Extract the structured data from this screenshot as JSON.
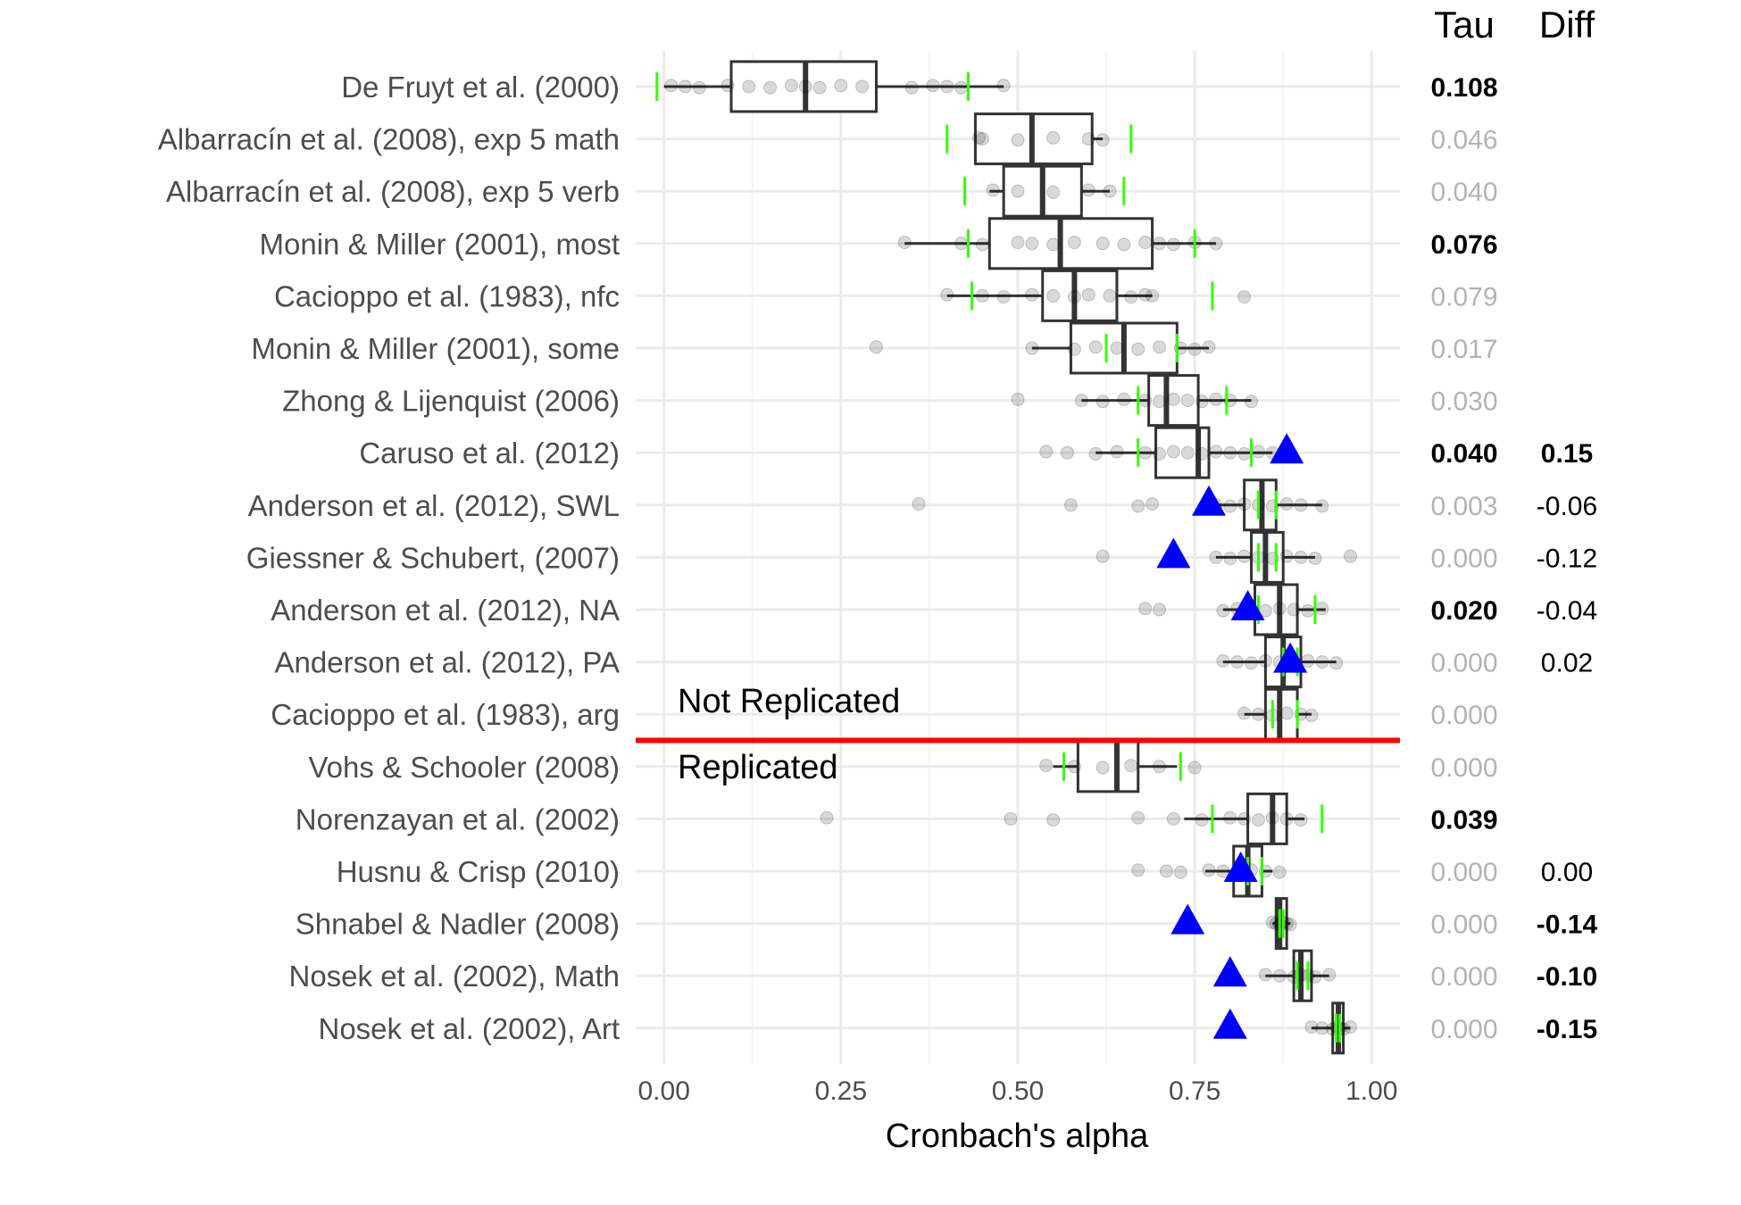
{
  "chart_data": {
    "type": "boxplot",
    "xlabel": "Cronbach's alpha",
    "xlim": [
      -0.04,
      1.04
    ],
    "x_ticks": [
      {
        "value": 0.0,
        "label": "0.00"
      },
      {
        "value": 0.25,
        "label": "0.25"
      },
      {
        "value": 0.5,
        "label": "0.50"
      },
      {
        "value": 0.75,
        "label": "0.75"
      },
      {
        "value": 1.0,
        "label": "1.00"
      }
    ],
    "column_headers": {
      "tau": "Tau",
      "diff": "Diff"
    },
    "group_labels": {
      "upper": "Not Replicated",
      "lower": "Replicated"
    },
    "divider_after_index": 12,
    "studies": [
      {
        "name": "De Fruyt et al. (2000)",
        "q1": 0.095,
        "median": 0.2,
        "q3": 0.3,
        "wlo": 0.0,
        "whi": 0.48,
        "ci": [
          -0.01,
          0.43
        ],
        "orig": null,
        "tau": "0.108",
        "tau_sig": true,
        "diff": "",
        "diff_bold": false,
        "points": [
          0.01,
          0.03,
          0.05,
          0.09,
          0.12,
          0.15,
          0.18,
          0.2,
          0.22,
          0.25,
          0.28,
          0.35,
          0.38,
          0.4,
          0.42,
          0.48
        ]
      },
      {
        "name": "Albarracín et al. (2008), exp 5 math",
        "q1": 0.44,
        "median": 0.52,
        "q3": 0.605,
        "wlo": 0.44,
        "whi": 0.62,
        "ci": [
          0.4,
          0.66
        ],
        "orig": null,
        "tau": "0.046",
        "tau_sig": false,
        "diff": "",
        "diff_bold": false,
        "points": [
          0.445,
          0.45,
          0.5,
          0.55,
          0.6,
          0.62
        ]
      },
      {
        "name": "Albarracín et al. (2008), exp 5 verb",
        "q1": 0.48,
        "median": 0.535,
        "q3": 0.59,
        "wlo": 0.46,
        "whi": 0.63,
        "ci": [
          0.425,
          0.65
        ],
        "orig": null,
        "tau": "0.040",
        "tau_sig": false,
        "diff": "",
        "diff_bold": false,
        "points": [
          0.465,
          0.5,
          0.55,
          0.6,
          0.63
        ]
      },
      {
        "name": "Monin & Miller (2001), most",
        "q1": 0.46,
        "median": 0.56,
        "q3": 0.69,
        "wlo": 0.34,
        "whi": 0.78,
        "ci": [
          0.43,
          0.75
        ],
        "orig": null,
        "tau": "0.076",
        "tau_sig": true,
        "diff": "",
        "diff_bold": false,
        "points": [
          0.34,
          0.42,
          0.45,
          0.5,
          0.52,
          0.55,
          0.58,
          0.62,
          0.65,
          0.68,
          0.7,
          0.72,
          0.75,
          0.78
        ]
      },
      {
        "name": "Cacioppo et al. (1983), nfc",
        "q1": 0.535,
        "median": 0.58,
        "q3": 0.64,
        "wlo": 0.4,
        "whi": 0.69,
        "ci": [
          0.435,
          0.775
        ],
        "orig": null,
        "tau": "0.079",
        "tau_sig": false,
        "diff": "",
        "diff_bold": false,
        "points": [
          0.4,
          0.45,
          0.48,
          0.52,
          0.55,
          0.58,
          0.6,
          0.63,
          0.66,
          0.68,
          0.69,
          0.82
        ]
      },
      {
        "name": "Monin & Miller (2001), some",
        "q1": 0.575,
        "median": 0.65,
        "q3": 0.725,
        "wlo": 0.52,
        "whi": 0.77,
        "ci": [
          0.625,
          0.725
        ],
        "orig": null,
        "tau": "0.017",
        "tau_sig": false,
        "diff": "",
        "diff_bold": false,
        "points": [
          0.3,
          0.52,
          0.58,
          0.61,
          0.64,
          0.67,
          0.7,
          0.73,
          0.75,
          0.77
        ]
      },
      {
        "name": "Zhong & Lijenquist (2006)",
        "q1": 0.685,
        "median": 0.71,
        "q3": 0.755,
        "wlo": 0.59,
        "whi": 0.83,
        "ci": [
          0.67,
          0.795
        ],
        "orig": null,
        "tau": "0.030",
        "tau_sig": false,
        "diff": "",
        "diff_bold": false,
        "points": [
          0.5,
          0.59,
          0.62,
          0.65,
          0.68,
          0.7,
          0.72,
          0.74,
          0.76,
          0.78,
          0.8,
          0.83
        ]
      },
      {
        "name": "Caruso et al. (2012)",
        "q1": 0.695,
        "median": 0.755,
        "q3": 0.77,
        "wlo": 0.61,
        "whi": 0.86,
        "ci": [
          0.67,
          0.83
        ],
        "orig": 0.88,
        "tau": "0.040",
        "tau_sig": true,
        "diff": "0.15",
        "diff_bold": true,
        "points": [
          0.54,
          0.57,
          0.61,
          0.64,
          0.68,
          0.7,
          0.72,
          0.74,
          0.76,
          0.78,
          0.8,
          0.82,
          0.84,
          0.86
        ]
      },
      {
        "name": "Anderson et al. (2012), SWL",
        "q1": 0.82,
        "median": 0.845,
        "q3": 0.865,
        "wlo": 0.77,
        "whi": 0.93,
        "ci": [
          0.84,
          0.865
        ],
        "orig": 0.77,
        "tau": "0.003",
        "tau_sig": false,
        "diff": "-0.06",
        "diff_bold": false,
        "points": [
          0.36,
          0.575,
          0.67,
          0.69,
          0.78,
          0.8,
          0.82,
          0.84,
          0.86,
          0.88,
          0.9,
          0.93
        ]
      },
      {
        "name": "Giessner & Schubert, (2007)",
        "q1": 0.83,
        "median": 0.85,
        "q3": 0.875,
        "wlo": 0.78,
        "whi": 0.92,
        "ci": [
          0.84,
          0.865
        ],
        "orig": 0.72,
        "tau": "0.000",
        "tau_sig": false,
        "diff": "-0.12",
        "diff_bold": false,
        "points": [
          0.62,
          0.78,
          0.8,
          0.82,
          0.84,
          0.86,
          0.88,
          0.9,
          0.92,
          0.97
        ]
      },
      {
        "name": "Anderson et al. (2012), NA",
        "q1": 0.835,
        "median": 0.87,
        "q3": 0.895,
        "wlo": 0.79,
        "whi": 0.935,
        "ci": [
          0.84,
          0.92
        ],
        "orig": 0.825,
        "tau": "0.020",
        "tau_sig": true,
        "diff": "-0.04",
        "diff_bold": false,
        "points": [
          0.68,
          0.7,
          0.79,
          0.81,
          0.83,
          0.85,
          0.87,
          0.89,
          0.91,
          0.93
        ]
      },
      {
        "name": "Anderson et al. (2012), PA",
        "q1": 0.85,
        "median": 0.875,
        "q3": 0.9,
        "wlo": 0.79,
        "whi": 0.95,
        "ci": [
          0.875,
          0.895
        ],
        "orig": 0.885,
        "tau": "0.000",
        "tau_sig": false,
        "diff": "0.02",
        "diff_bold": false,
        "points": [
          0.79,
          0.81,
          0.83,
          0.85,
          0.87,
          0.89,
          0.91,
          0.93,
          0.95
        ]
      },
      {
        "name": "Cacioppo et al. (1983), arg",
        "q1": 0.85,
        "median": 0.87,
        "q3": 0.895,
        "wlo": 0.82,
        "whi": 0.915,
        "ci": [
          0.86,
          0.895
        ],
        "orig": null,
        "tau": "0.000",
        "tau_sig": false,
        "diff": "",
        "diff_bold": false,
        "points": [
          0.82,
          0.84,
          0.86,
          0.88,
          0.9,
          0.915
        ]
      },
      {
        "name": "Vohs & Schooler (2008)",
        "q1": 0.585,
        "median": 0.64,
        "q3": 0.67,
        "wlo": 0.55,
        "whi": 0.725,
        "ci": [
          0.565,
          0.73
        ],
        "orig": null,
        "tau": "0.000",
        "tau_sig": false,
        "diff": "",
        "diff_bold": false,
        "points": [
          0.54,
          0.58,
          0.62,
          0.66,
          0.7,
          0.75
        ]
      },
      {
        "name": "Norenzayan et al. (2002)",
        "q1": 0.825,
        "median": 0.86,
        "q3": 0.88,
        "wlo": 0.735,
        "whi": 0.905,
        "ci": [
          0.775,
          0.93
        ],
        "orig": null,
        "tau": "0.039",
        "tau_sig": true,
        "diff": "",
        "diff_bold": false,
        "points": [
          0.23,
          0.49,
          0.55,
          0.67,
          0.72,
          0.76,
          0.8,
          0.82,
          0.84,
          0.86,
          0.88,
          0.9
        ]
      },
      {
        "name": "Husnu & Crisp (2010)",
        "q1": 0.805,
        "median": 0.825,
        "q3": 0.845,
        "wlo": 0.765,
        "whi": 0.86,
        "ci": [
          0.825,
          0.845
        ],
        "orig": 0.815,
        "tau": "0.000",
        "tau_sig": false,
        "diff": "0.00",
        "diff_bold": false,
        "points": [
          0.67,
          0.71,
          0.73,
          0.77,
          0.79,
          0.81,
          0.83,
          0.85,
          0.87
        ]
      },
      {
        "name": "Shnabel & Nadler (2008)",
        "q1": 0.865,
        "median": 0.87,
        "q3": 0.88,
        "wlo": 0.86,
        "whi": 0.885,
        "ci": [
          0.87,
          0.875
        ],
        "orig": 0.74,
        "tau": "0.000",
        "tau_sig": false,
        "diff": "-0.14",
        "diff_bold": true,
        "points": [
          0.86,
          0.865,
          0.87,
          0.875,
          0.88,
          0.885
        ]
      },
      {
        "name": "Nosek et al. (2002), Math",
        "q1": 0.89,
        "median": 0.9,
        "q3": 0.915,
        "wlo": 0.85,
        "whi": 0.94,
        "ci": [
          0.895,
          0.91
        ],
        "orig": 0.8,
        "tau": "0.000",
        "tau_sig": false,
        "diff": "-0.10",
        "diff_bold": true,
        "points": [
          0.85,
          0.87,
          0.89,
          0.9,
          0.91,
          0.92,
          0.94
        ]
      },
      {
        "name": "Nosek et al. (2002), Art",
        "q1": 0.945,
        "median": 0.953,
        "q3": 0.96,
        "wlo": 0.915,
        "whi": 0.97,
        "ci": [
          0.95,
          0.955
        ],
        "orig": 0.8,
        "tau": "0.000",
        "tau_sig": false,
        "diff": "-0.15",
        "diff_bold": true,
        "points": [
          0.915,
          0.93,
          0.945,
          0.95,
          0.955,
          0.96,
          0.97
        ]
      }
    ]
  }
}
